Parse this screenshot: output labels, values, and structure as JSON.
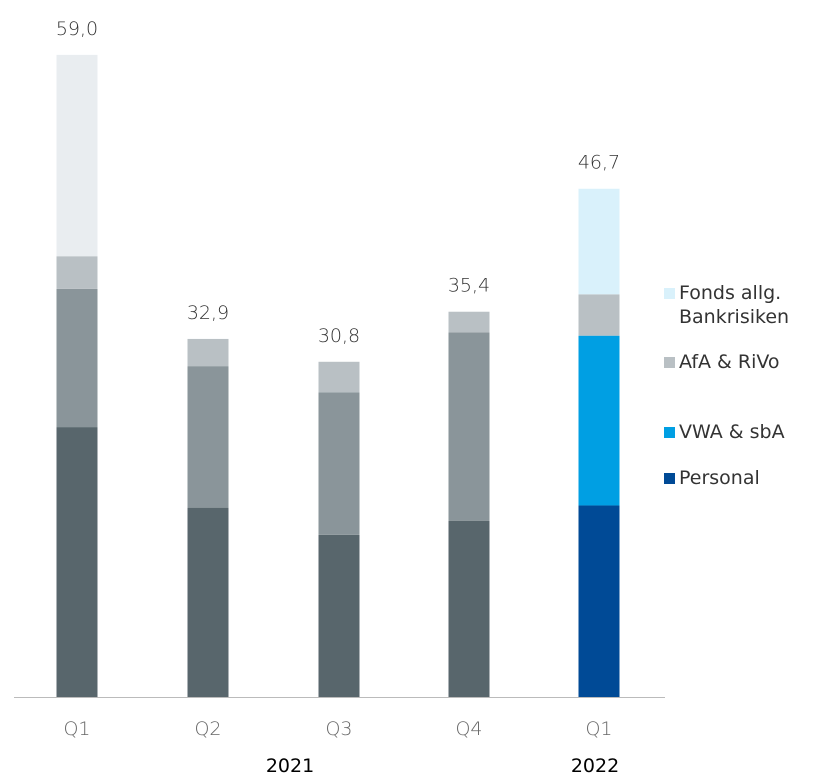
{
  "chart_data": {
    "type": "stacked_bar",
    "categories": [
      "Q1",
      "Q2",
      "Q3",
      "Q4",
      "Q1"
    ],
    "groups": [
      "2021",
      "2022"
    ],
    "series": [
      {
        "name": "Personal",
        "color": "#004a96",
        "colors": [
          "#58666c",
          "#58666c",
          "#58666c",
          "#58666c",
          "#004a96"
        ],
        "values": [
          24.8,
          17.4,
          14.9,
          16.2,
          17.6
        ]
      },
      {
        "name": "VWA & sbA",
        "color": "#009fe3",
        "colors": [
          "#8a959a",
          "#8a959a",
          "#8a959a",
          "#8a959a",
          "#009fe3"
        ],
        "values": [
          12.7,
          13.0,
          13.1,
          17.3,
          15.6
        ]
      },
      {
        "name": "AfA & RiVo",
        "color": "#b9c0c4",
        "colors": [
          "#b9c0c4",
          "#b9c0c4",
          "#b9c0c4",
          "#b9c0c4",
          "#b9c0c4"
        ],
        "values": [
          3.0,
          2.5,
          2.8,
          1.9,
          3.8
        ]
      },
      {
        "name": "Fonds allg. Bankrisiken",
        "color": "#d9f1fb",
        "colors": [
          "#e9edf0",
          "#e9edf0",
          "#e9edf0",
          "#e9edf0",
          "#d9f1fb"
        ],
        "values": [
          18.5,
          null,
          null,
          null,
          9.7
        ]
      }
    ],
    "totals": [
      59.0,
      32.9,
      30.8,
      35.4,
      46.7
    ],
    "total_labels": [
      "59,0",
      "32,9",
      "30,8",
      "35,4",
      "46,7"
    ],
    "ylim": [
      0,
      60
    ]
  }
}
